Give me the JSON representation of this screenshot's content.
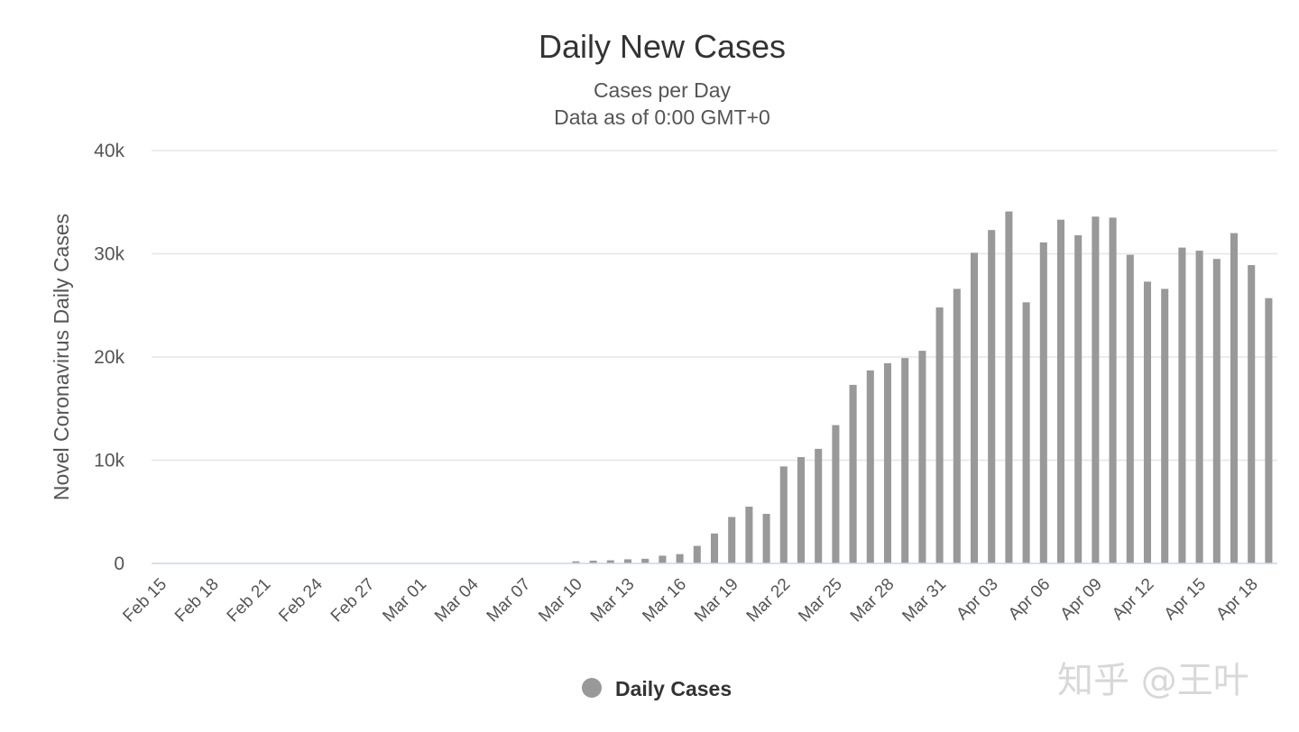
{
  "chart_data": {
    "type": "bar",
    "title": "Daily New Cases",
    "subtitle_lines": [
      "Cases per Day",
      "Data as of 0:00 GMT+0"
    ],
    "ylabel": "Novel Coronavirus Daily Cases",
    "xlabel": "",
    "ylim": [
      0,
      40000
    ],
    "y_ticks": [
      0,
      10000,
      20000,
      30000,
      40000
    ],
    "y_tick_labels": [
      "0",
      "10k",
      "20k",
      "30k",
      "40k"
    ],
    "grid": true,
    "legend_position": "bottom-center",
    "categories": [
      "Feb 15",
      "Feb 16",
      "Feb 17",
      "Feb 18",
      "Feb 19",
      "Feb 20",
      "Feb 21",
      "Feb 22",
      "Feb 23",
      "Feb 24",
      "Feb 25",
      "Feb 26",
      "Feb 27",
      "Feb 28",
      "Feb 29",
      "Mar 01",
      "Mar 02",
      "Mar 03",
      "Mar 04",
      "Mar 05",
      "Mar 06",
      "Mar 07",
      "Mar 08",
      "Mar 09",
      "Mar 10",
      "Mar 11",
      "Mar 12",
      "Mar 13",
      "Mar 14",
      "Mar 15",
      "Mar 16",
      "Mar 17",
      "Mar 18",
      "Mar 19",
      "Mar 20",
      "Mar 21",
      "Mar 22",
      "Mar 23",
      "Mar 24",
      "Mar 25",
      "Mar 26",
      "Mar 27",
      "Mar 28",
      "Mar 29",
      "Mar 30",
      "Mar 31",
      "Apr 01",
      "Apr 02",
      "Apr 03",
      "Apr 04",
      "Apr 05",
      "Apr 06",
      "Apr 07",
      "Apr 08",
      "Apr 09",
      "Apr 10",
      "Apr 11",
      "Apr 12",
      "Apr 13",
      "Apr 14",
      "Apr 15",
      "Apr 16",
      "Apr 17",
      "Apr 18",
      "Apr 19"
    ],
    "x_tick_labels": [
      "Feb 15",
      "Feb 18",
      "Feb 21",
      "Feb 24",
      "Feb 27",
      "Mar 01",
      "Mar 04",
      "Mar 07",
      "Mar 10",
      "Mar 13",
      "Mar 16",
      "Mar 19",
      "Mar 22",
      "Mar 25",
      "Mar 28",
      "Mar 31",
      "Apr 03",
      "Apr 06",
      "Apr 09",
      "Apr 12",
      "Apr 15",
      "Apr 18"
    ],
    "series": [
      {
        "name": "Daily Cases",
        "color": "#999999",
        "values": [
          0,
          0,
          0,
          0,
          0,
          0,
          0,
          0,
          0,
          0,
          0,
          0,
          0,
          0,
          0,
          0,
          0,
          0,
          0,
          0,
          0,
          0,
          0,
          0,
          200,
          270,
          300,
          400,
          450,
          750,
          900,
          1700,
          2900,
          4500,
          5500,
          4800,
          9400,
          10300,
          11100,
          13400,
          17300,
          18700,
          19400,
          19900,
          20600,
          24800,
          26600,
          30100,
          32300,
          34100,
          25300,
          31100,
          33300,
          31800,
          33600,
          33500,
          29900,
          27300,
          26600,
          30600,
          30300,
          29500,
          32000,
          28900,
          25700
        ]
      }
    ]
  },
  "watermark": "知乎 @王叶"
}
